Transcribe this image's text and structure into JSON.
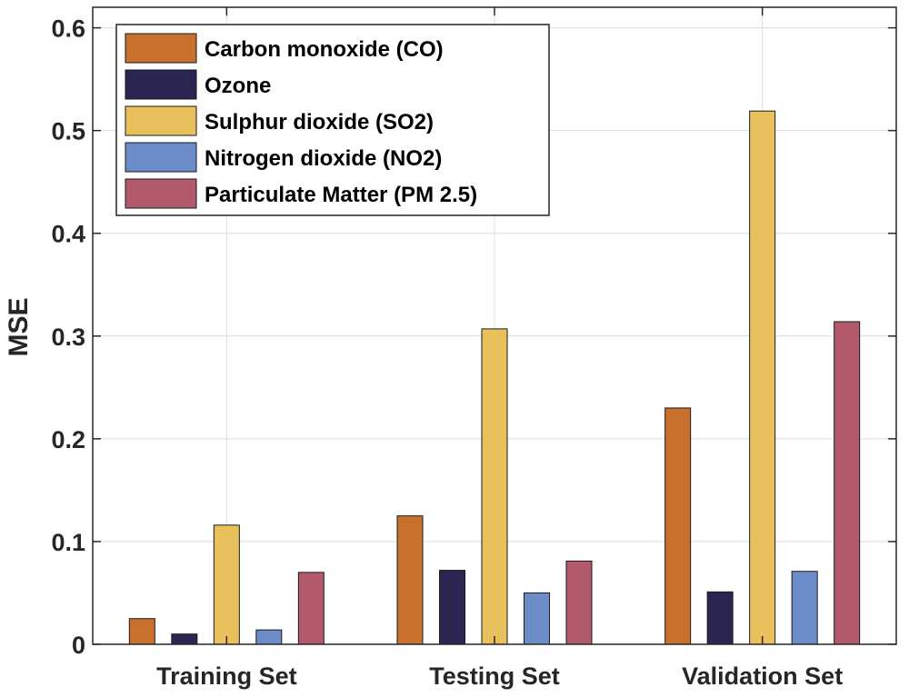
{
  "chart_data": {
    "type": "bar",
    "title": "",
    "xlabel": "",
    "ylabel": "MSE",
    "ylim": [
      0,
      0.62
    ],
    "yticks": [
      0,
      0.1,
      0.2,
      0.3,
      0.4,
      0.5,
      0.6
    ],
    "ytick_labels": [
      "0",
      "0.1",
      "0.2",
      "0.3",
      "0.4",
      "0.5",
      "0.6"
    ],
    "grid": true,
    "legend_position": "top-left",
    "categories": [
      "Training Set",
      "Testing Set",
      "Validation Set"
    ],
    "series": [
      {
        "name": "Carbon monoxide (CO)",
        "color": "#C8702E",
        "values": [
          0.025,
          0.125,
          0.23
        ]
      },
      {
        "name": "Ozone",
        "color": "#2A2651",
        "values": [
          0.01,
          0.072,
          0.051
        ]
      },
      {
        "name": "Sulphur dioxide (SO2)",
        "color": "#E8C15C",
        "values": [
          0.116,
          0.307,
          0.519
        ]
      },
      {
        "name": "Nitrogen dioxide (NO2)",
        "color": "#6C8CC8",
        "values": [
          0.014,
          0.05,
          0.071
        ]
      },
      {
        "name": "Particulate Matter (PM 2.5)",
        "color": "#B25A6B",
        "values": [
          0.07,
          0.081,
          0.314
        ]
      }
    ]
  }
}
